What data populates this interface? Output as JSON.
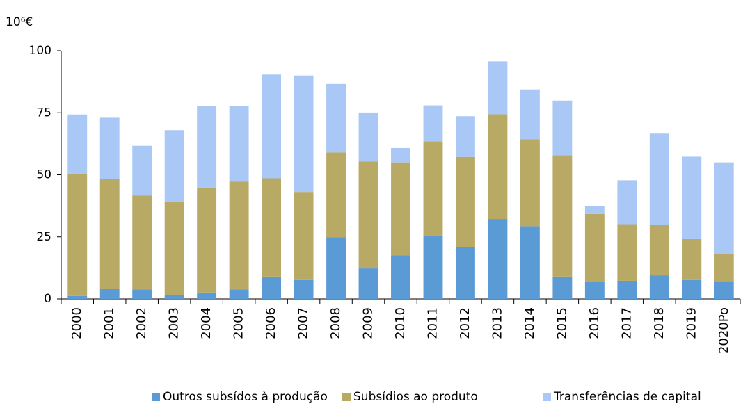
{
  "chart_data": {
    "type": "bar",
    "stacked": true,
    "unit_label": "10⁶€",
    "categories": [
      "2000",
      "2001",
      "2002",
      "2003",
      "2004",
      "2005",
      "2006",
      "2007",
      "2008",
      "2009",
      "2010",
      "2011",
      "2012",
      "2013",
      "2014",
      "2015",
      "2016",
      "2017",
      "2018",
      "2019",
      "2020Po"
    ],
    "series": [
      {
        "name": "Outros subsídos à produção",
        "color": "#5b9bd5",
        "values": [
          1.2,
          4.2,
          3.8,
          1.5,
          2.6,
          3.8,
          9,
          7.6,
          24.8,
          12.3,
          17.6,
          25.5,
          21,
          32.2,
          29.3,
          9,
          6.8,
          7.3,
          9.5,
          7.6,
          7.2
        ]
      },
      {
        "name": "Subsídios ao produto",
        "color": "#b8a964",
        "values": [
          49.3,
          44.1,
          37.8,
          37.8,
          42.3,
          43.4,
          39.6,
          35.5,
          34.2,
          43.1,
          37.4,
          38,
          36.2,
          42.2,
          35,
          48.9,
          27.4,
          22.8,
          20.2,
          16.5,
          10.9
        ]
      },
      {
        "name": "Transferências de capital",
        "color": "#a9c8f5",
        "values": [
          23.8,
          24.7,
          20.1,
          28.7,
          32.9,
          30.5,
          41.8,
          46.9,
          27.6,
          19.7,
          5.8,
          14.5,
          16.4,
          21.3,
          20.1,
          22,
          3.2,
          17.7,
          36.9,
          33.2,
          36.9
        ]
      }
    ],
    "ylim": [
      0,
      100
    ],
    "yticks": [
      0,
      25,
      50,
      75,
      100
    ],
    "grid": false,
    "legend": "bottom"
  }
}
